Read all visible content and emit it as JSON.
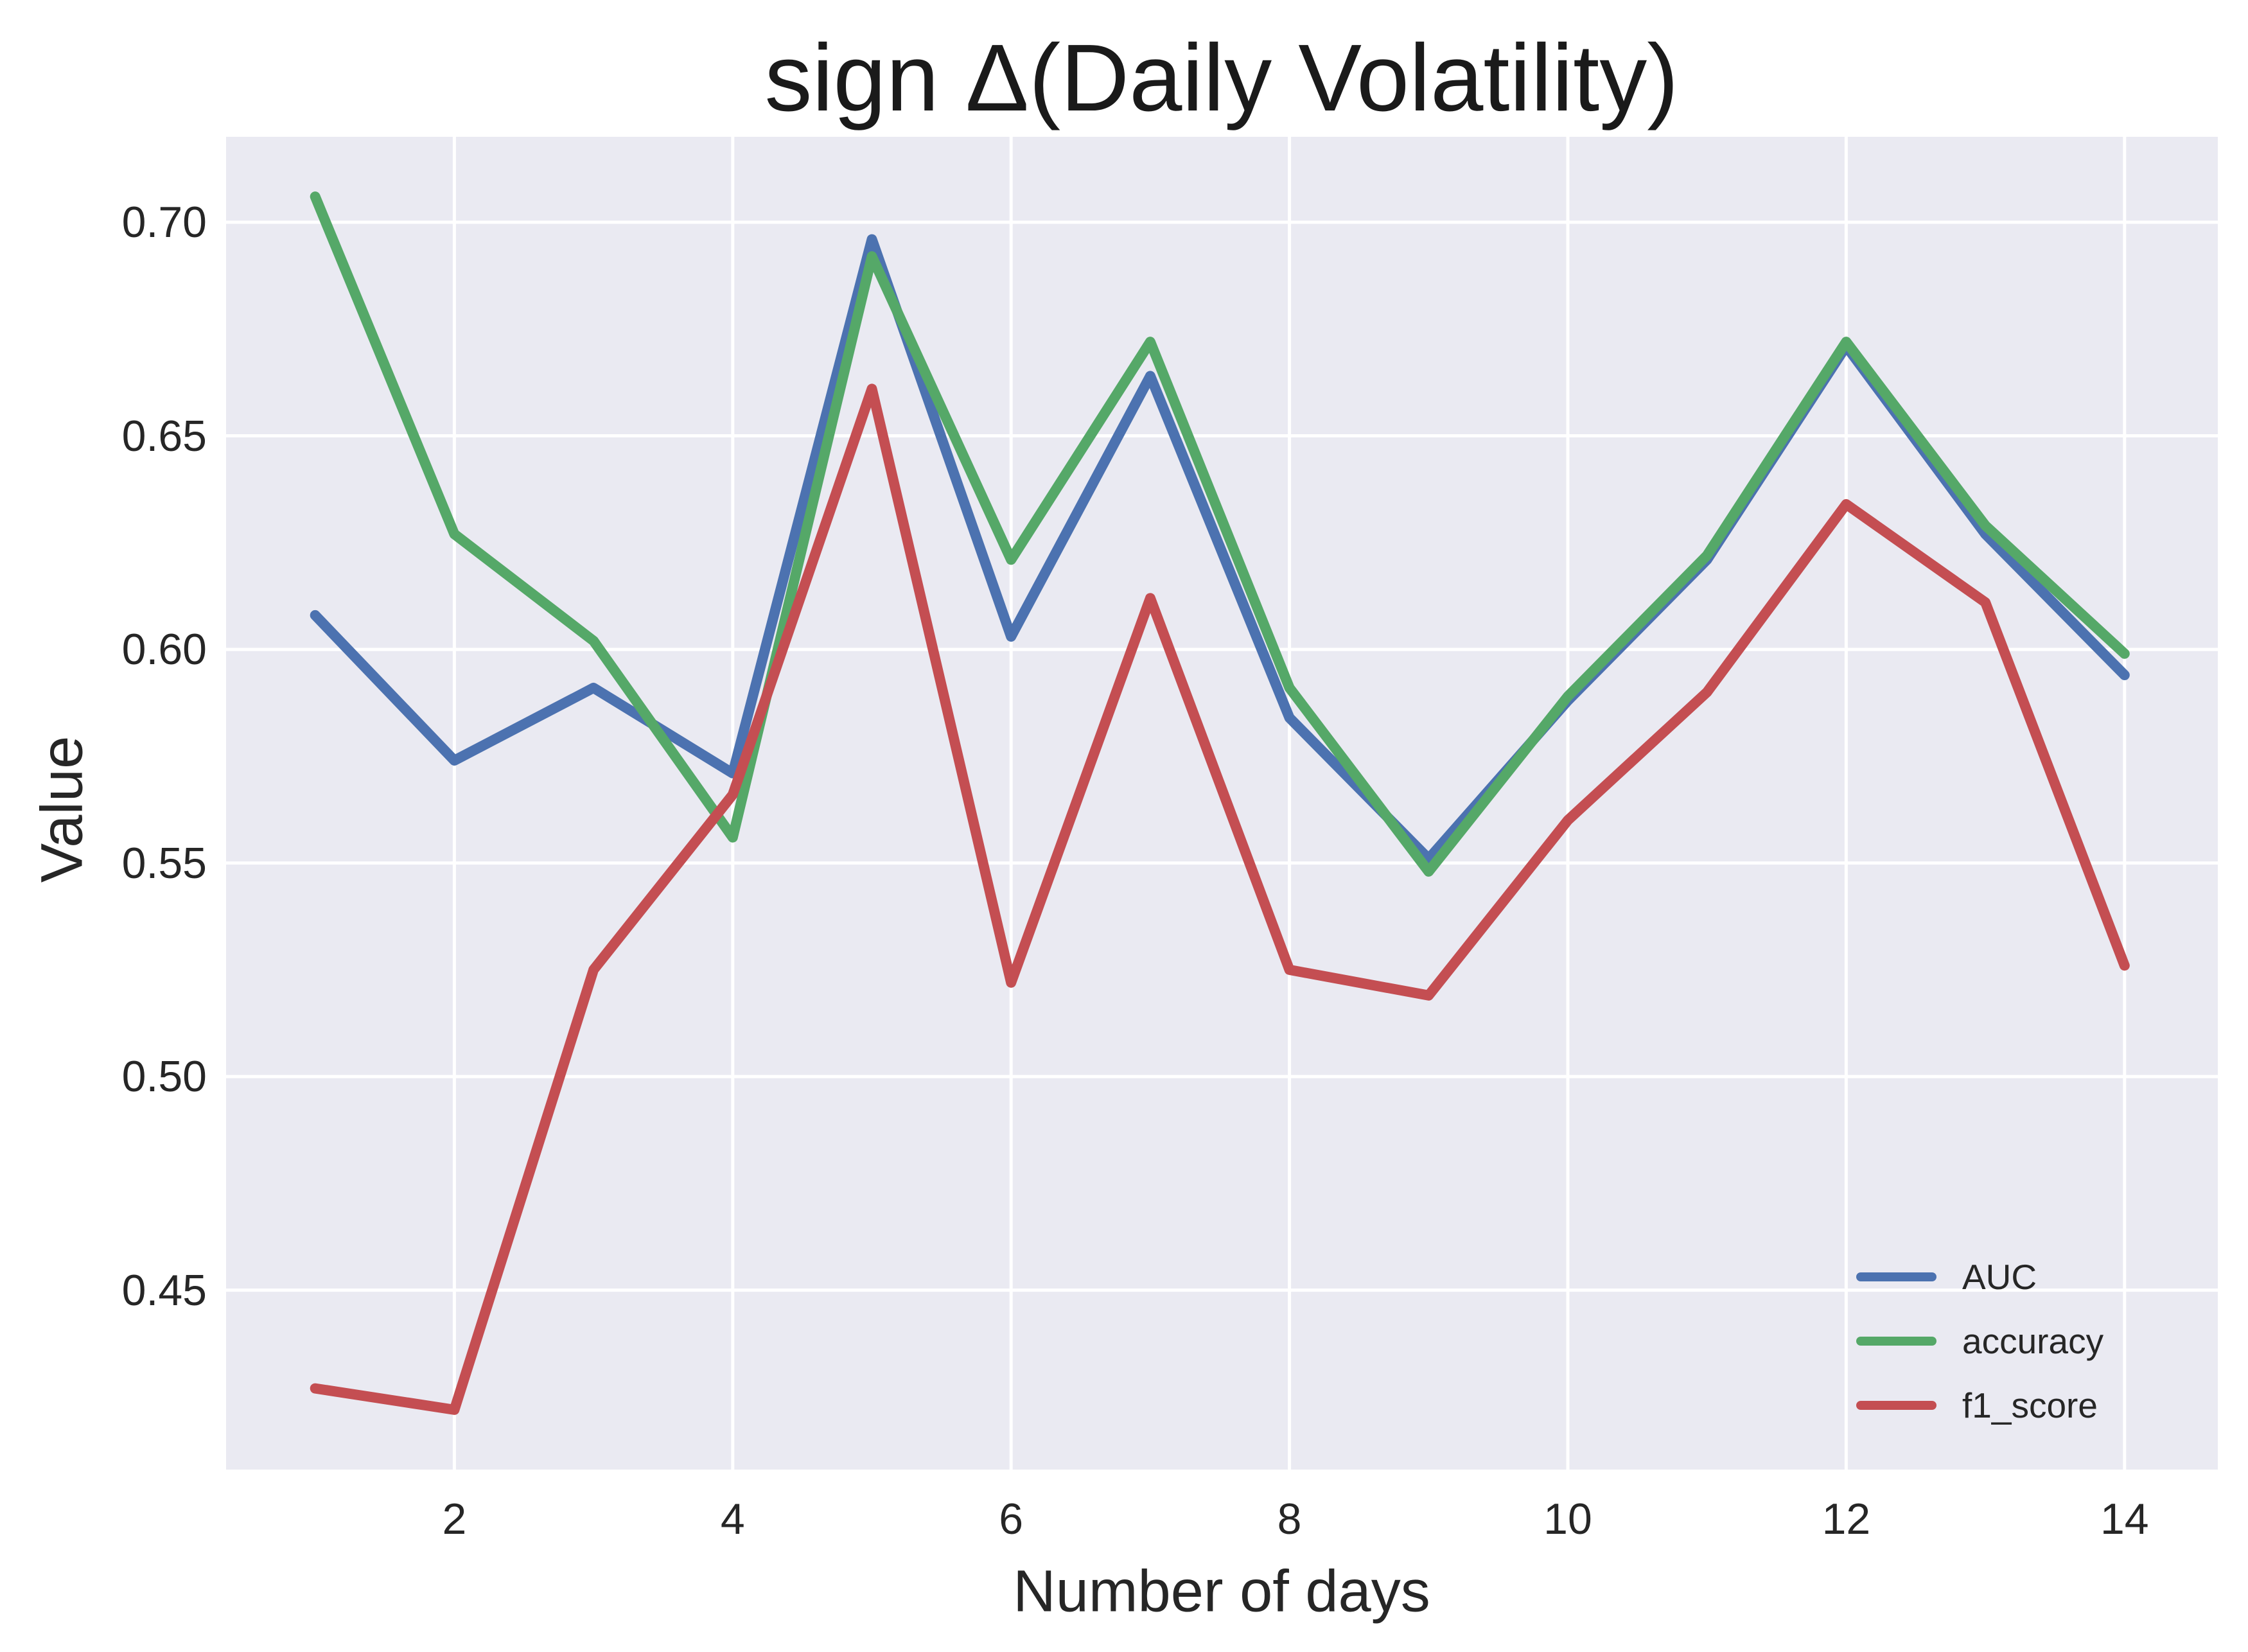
{
  "chart_data": {
    "type": "line",
    "title": "sign Δ(Daily Volatility)",
    "xlabel": "Number of days",
    "ylabel": "Value",
    "x": [
      1,
      2,
      3,
      4,
      5,
      6,
      7,
      8,
      9,
      10,
      11,
      12,
      13,
      14
    ],
    "series": [
      {
        "name": "AUC",
        "color": "#4C72B0",
        "values": [
          0.608,
          0.574,
          0.591,
          0.571,
          0.696,
          0.603,
          0.664,
          0.584,
          0.551,
          0.588,
          0.621,
          0.671,
          0.627,
          0.594
        ]
      },
      {
        "name": "accuracy",
        "color": "#55A868",
        "values": [
          0.706,
          0.627,
          0.602,
          0.556,
          0.692,
          0.621,
          0.672,
          0.591,
          0.548,
          0.589,
          0.622,
          0.672,
          0.629,
          0.599
        ]
      },
      {
        "name": "f1_score",
        "color": "#C44E52",
        "values": [
          0.427,
          0.422,
          0.525,
          0.566,
          0.661,
          0.522,
          0.612,
          0.525,
          0.519,
          0.56,
          0.59,
          0.634,
          0.611,
          0.526
        ]
      }
    ],
    "xticks": [
      2,
      4,
      6,
      8,
      10,
      12,
      14
    ],
    "xtick_labels": [
      "2",
      "4",
      "6",
      "8",
      "10",
      "12",
      "14"
    ],
    "yticks": [
      0.45,
      0.5,
      0.55,
      0.6,
      0.65,
      0.7
    ],
    "ytick_labels": [
      "0.45",
      "0.50",
      "0.55",
      "0.60",
      "0.65",
      "0.70"
    ],
    "xlim": [
      0.36,
      14.67
    ],
    "ylim": [
      0.408,
      0.72
    ],
    "grid": true,
    "legend_position": "lower right",
    "plot_background": "#EAEAF2",
    "gridline_color": "#FFFFFF",
    "text_color": "#262626"
  }
}
